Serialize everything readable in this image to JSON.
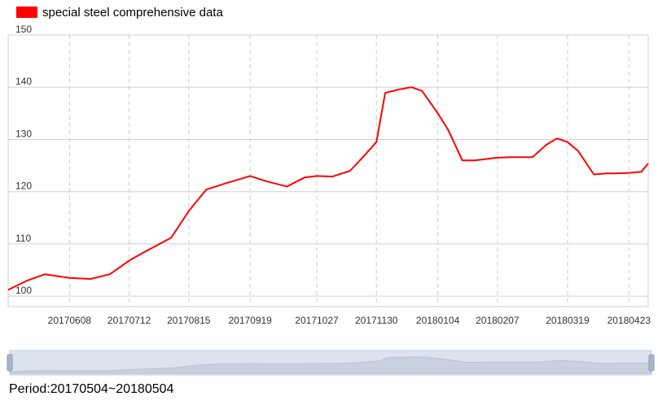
{
  "legend": {
    "label": "special steel comprehensive data",
    "color": "#ff0000"
  },
  "period_text": "Period:20170504~20180504",
  "chart_data": {
    "type": "line",
    "series": [
      {
        "name": "special steel comprehensive data",
        "color": "#ff0000",
        "x": [
          "20170504",
          "20170515",
          "20170525",
          "20170608",
          "20170620",
          "20170701",
          "20170712",
          "20170720",
          "20170805",
          "20170815",
          "20170825",
          "20170905",
          "20170919",
          "20170928",
          "20171010",
          "20171020",
          "20171027",
          "20171105",
          "20171115",
          "20171122",
          "20171130",
          "20171205",
          "20171212",
          "20171220",
          "20171226",
          "20180104",
          "20180110",
          "20180118",
          "20180125",
          "20180207",
          "20180215",
          "20180227",
          "20180307",
          "20180313",
          "20180319",
          "20180325",
          "20180403",
          "20180410",
          "20180415",
          "20180423",
          "20180430",
          "20180504"
        ],
        "values": [
          101.2,
          103.0,
          104.2,
          103.5,
          103.3,
          104.2,
          106.8,
          108.3,
          111.2,
          116.3,
          120.4,
          121.6,
          123.0,
          122.0,
          121.0,
          122.7,
          123.0,
          122.9,
          124.0,
          126.5,
          129.5,
          138.9,
          139.5,
          140.0,
          139.3,
          135.0,
          131.8,
          126.0,
          126.0,
          126.5,
          126.6,
          126.6,
          129.0,
          130.2,
          129.5,
          127.8,
          123.3,
          123.5,
          123.5,
          123.6,
          123.8,
          125.4
        ]
      }
    ],
    "x_tick_labels": [
      "20170608",
      "20170712",
      "20170815",
      "20170919",
      "20171027",
      "20171130",
      "20180104",
      "20180207",
      "20180319",
      "20180423"
    ],
    "x_range": [
      "20170504",
      "20180504"
    ],
    "ylim": [
      98,
      150
    ],
    "y_ticks": [
      100,
      110,
      120,
      130,
      140,
      150
    ],
    "grid": true
  }
}
